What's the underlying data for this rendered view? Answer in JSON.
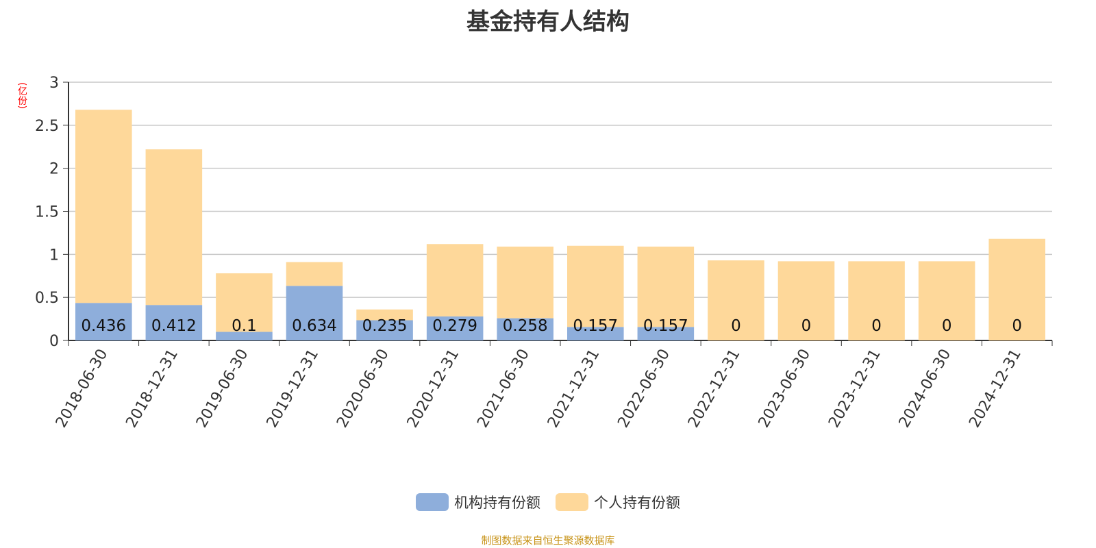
{
  "chart_data": {
    "type": "bar",
    "stacked": true,
    "title": "基金持有人结构",
    "ylabel": "(亿份)",
    "ylim": [
      0,
      3
    ],
    "yticks": [
      "0",
      "0.5",
      "1",
      "1.5",
      "2",
      "2.5",
      "3"
    ],
    "grid": true,
    "legend_position": "bottom",
    "categories": [
      "2018-06-30",
      "2018-12-31",
      "2019-06-30",
      "2019-12-31",
      "2020-06-30",
      "2020-12-31",
      "2021-06-30",
      "2021-12-31",
      "2022-06-30",
      "2022-12-31",
      "2023-06-30",
      "2023-12-31",
      "2024-06-30",
      "2024-12-31"
    ],
    "series": [
      {
        "name": "机构持有份额",
        "color": "#8eaedb",
        "values": [
          0.436,
          0.412,
          0.1,
          0.634,
          0.235,
          0.279,
          0.258,
          0.157,
          0.157,
          0,
          0,
          0,
          0,
          0
        ]
      },
      {
        "name": "个人持有份额",
        "color": "#fed89a",
        "values": [
          2.244,
          1.808,
          0.68,
          0.276,
          0.125,
          0.841,
          0.832,
          0.943,
          0.933,
          0.93,
          0.92,
          0.92,
          0.92,
          1.18
        ]
      }
    ]
  },
  "footer": "制图数据来自恒生聚源数据库"
}
